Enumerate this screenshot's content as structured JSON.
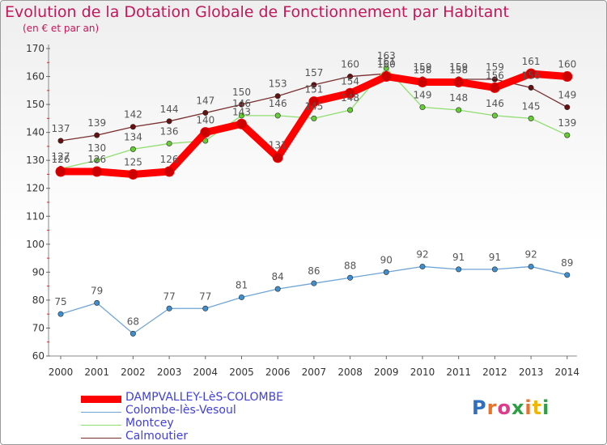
{
  "title": "Evolution de la Dotation Globale de Fonctionnement par Habitant",
  "subtitle": "(en € et par an)",
  "logo": "Proxiti",
  "chart_data": {
    "type": "line",
    "title": "Evolution de la Dotation Globale de Fonctionnement par Habitant",
    "subtitle": "(en € et par an)",
    "xlabel": "",
    "ylabel": "",
    "ylim": [
      60,
      170
    ],
    "yticks": [
      60,
      70,
      80,
      90,
      100,
      110,
      120,
      130,
      140,
      150,
      160,
      170
    ],
    "categories": [
      "2000",
      "2001",
      "2002",
      "2003",
      "2004",
      "2005",
      "2006",
      "2007",
      "2008",
      "2009",
      "2010",
      "2011",
      "2012",
      "2013",
      "2014"
    ],
    "grid": false,
    "legend_position": "bottom-left",
    "series": [
      {
        "name": "DAMPVALLEY-LèS-COLOMBE",
        "color": "#ff0000",
        "point_color": "#cc0000",
        "values": [
          126,
          126,
          125,
          126,
          140,
          143,
          131,
          151,
          154,
          160,
          158,
          158,
          156,
          161,
          160
        ],
        "labels": [
          "126",
          "126",
          "125",
          "126",
          "140",
          "143",
          "131",
          "151",
          "154",
          "160",
          "158",
          "158",
          "156",
          "161",
          "160"
        ]
      },
      {
        "name": "Colombe-lès-Vesoul",
        "color": "#6fa4d6",
        "point_color": "#3f8fd0",
        "values": [
          75,
          79,
          68,
          77,
          77,
          81,
          84,
          86,
          88,
          90,
          92,
          91,
          91,
          92,
          89
        ],
        "labels": [
          "75",
          "79",
          "68",
          "77",
          "77",
          "81",
          "84",
          "86",
          "88",
          "90",
          "92",
          "91",
          "91",
          "92",
          "89"
        ]
      },
      {
        "name": "Montcey",
        "color": "#90dd70",
        "point_color": "#66cc33",
        "values": [
          127,
          130,
          134,
          136,
          137,
          146,
          146,
          145,
          148,
          163,
          149,
          148,
          146,
          145,
          139
        ],
        "labels": [
          "127",
          "130",
          "134",
          "136",
          "",
          "146",
          "146",
          "145",
          "148",
          "163",
          "149",
          "148",
          "146",
          "145",
          "139"
        ]
      },
      {
        "name": "Calmoutier",
        "color": "#7a2e2e",
        "point_color": "#661111",
        "values": [
          137,
          139,
          142,
          144,
          147,
          150,
          153,
          157,
          160,
          161,
          159,
          159,
          159,
          156,
          149
        ],
        "labels": [
          "137",
          "139",
          "142",
          "144",
          "147",
          "150",
          "153",
          "157",
          "160",
          "161",
          "159",
          "159",
          "159",
          "156",
          "149"
        ]
      }
    ]
  }
}
